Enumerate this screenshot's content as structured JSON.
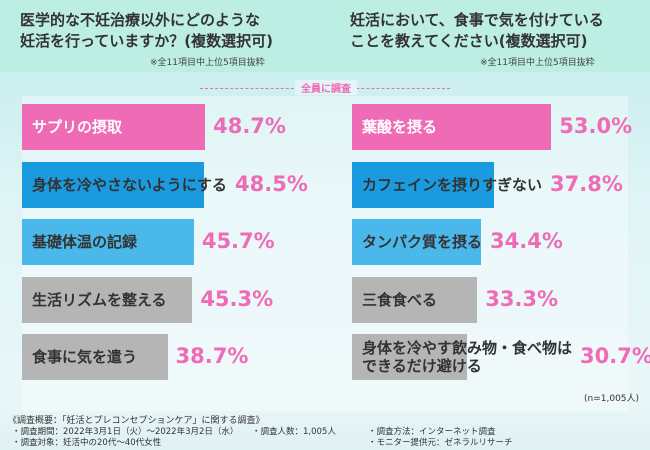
{
  "chart_data": [
    {
      "type": "hbar",
      "title": [
        "医学的な不妊治療以外にどのような",
        "妊活を行っていますか？(複数選択可)"
      ],
      "note": "※全11項目中上位5項目抜粋",
      "categories": [
        "サプリの摂取",
        "身体を冷やさないようにする",
        "基礎体温の記録",
        "生活リズムを整える",
        "食事に気を遣う"
      ],
      "values": [
        48.7,
        48.5,
        45.7,
        45.3,
        38.7
      ],
      "value_labels": [
        "48.7%",
        "48.5%",
        "45.7%",
        "45.3%",
        "38.7%"
      ],
      "colors": [
        "#f06bb5",
        "#1a9be0",
        "#4bb8ec",
        "#b5b5b5",
        "#b5b5b5"
      ]
    },
    {
      "type": "hbar",
      "title": [
        "妊活において、食事で気を付けている",
        "ことを教えてください(複数選択可)"
      ],
      "note": "※全11項目中上位5項目抜粋",
      "categories": [
        "葉酸を摂る",
        "カフェインを摂りすぎない",
        "タンパク質を摂る",
        "三食食べる",
        "身体を冷やす飲み物・食べ物は\nできるだけ避ける"
      ],
      "values": [
        53.0,
        37.8,
        34.4,
        33.3,
        30.7
      ],
      "value_labels": [
        "53.0%",
        "37.8%",
        "34.4%",
        "33.3%",
        "30.7%"
      ],
      "colors": [
        "#f06bb5",
        "#1a9be0",
        "#4bb8ec",
        "#b5b5b5",
        "#b5b5b5"
      ]
    }
  ],
  "banner": "全員に調査",
  "sample_size": "(n=1,005人)",
  "footer": [
    "《調査概要：「妊活とプレコンセプションケア」に関する調査》",
    "・調査期間：2022年3月1日（火）～2022年3月2日（水）",
    "・調査人数：1,005人",
    "・調査方法：インターネット調査",
    "・調査対象：妊活中の20代～40代女性",
    "・モニター提供元：ゼネラルリサーチ"
  ]
}
